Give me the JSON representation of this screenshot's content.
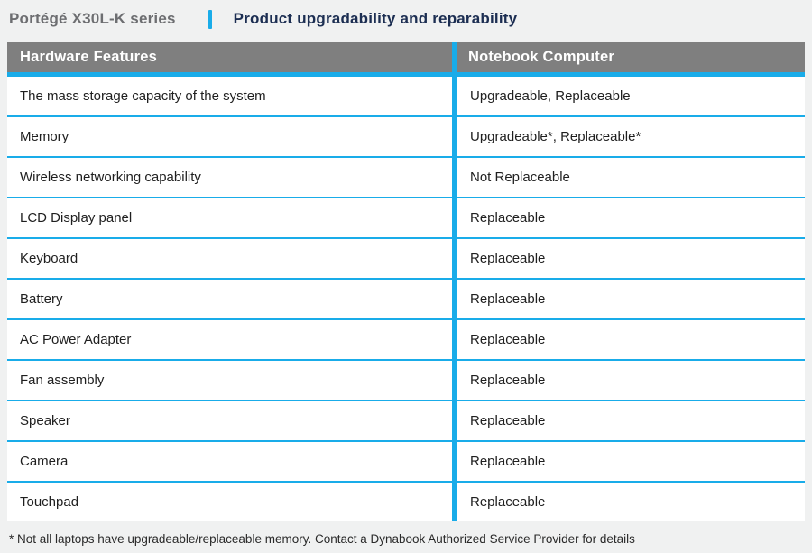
{
  "header": {
    "series_title": "Portégé X30L-K series",
    "page_title": "Product upgradability and reparability"
  },
  "table": {
    "columns": [
      "Hardware Features",
      "Notebook Computer"
    ],
    "rows": [
      {
        "feature": "The mass storage capacity of the system",
        "value": "Upgradeable, Replaceable"
      },
      {
        "feature": "Memory",
        "value": "Upgradeable*, Replaceable*"
      },
      {
        "feature": "Wireless networking capability",
        "value": "Not Replaceable"
      },
      {
        "feature": "LCD Display panel",
        "value": "Replaceable"
      },
      {
        "feature": "Keyboard",
        "value": "Replaceable"
      },
      {
        "feature": "Battery",
        "value": "Replaceable"
      },
      {
        "feature": "AC Power Adapter",
        "value": "Replaceable"
      },
      {
        "feature": "Fan assembly",
        "value": "Replaceable"
      },
      {
        "feature": "Speaker",
        "value": "Replaceable"
      },
      {
        "feature": "Camera",
        "value": "Replaceable"
      },
      {
        "feature": "Touchpad",
        "value": "Replaceable"
      }
    ]
  },
  "footnote": "* Not all laptops have upgradeable/replaceable memory. Contact a Dynabook Authorized Service Provider for details",
  "colors": {
    "accent_cyan": "#19ace9",
    "header_gray": "#7f7f7f",
    "title_navy": "#1c2e52",
    "title_gray": "#6d6e71",
    "page_background": "#f0f1f1"
  }
}
